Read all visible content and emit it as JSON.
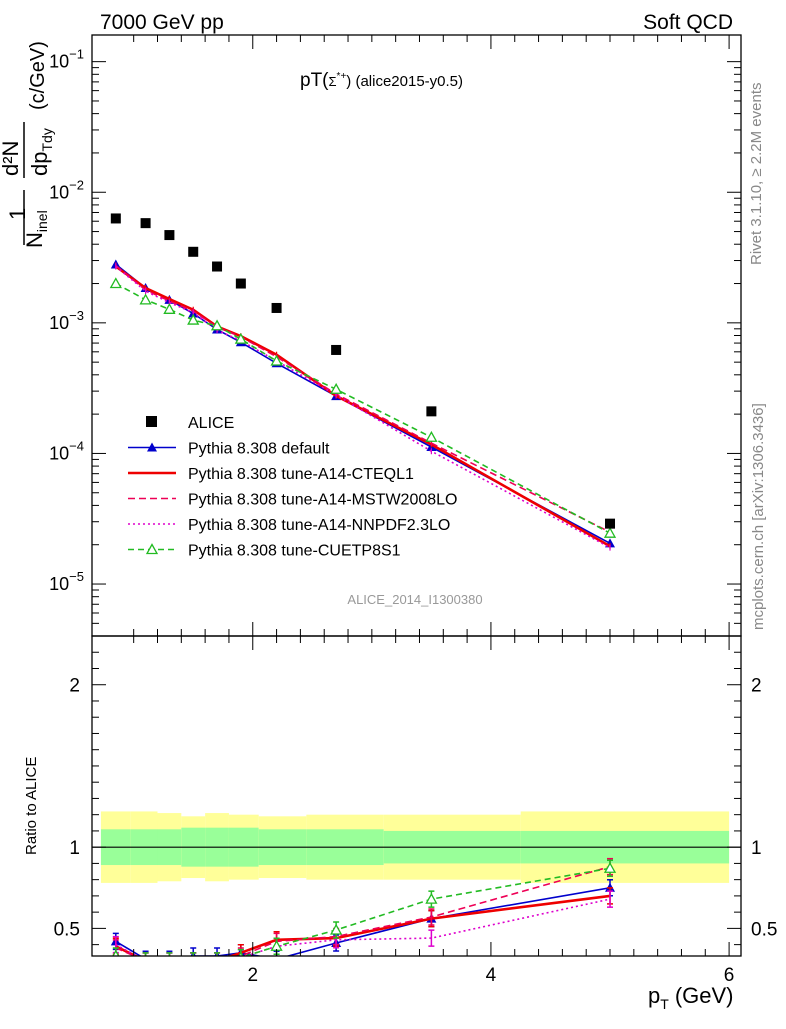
{
  "header": {
    "left": "7000 GeV pp",
    "right": "Soft QCD"
  },
  "side": {
    "rivet": "Rivet 3.1.10, ≥ 2.2M events",
    "mcplots": "mcplots.cern.ch [arXiv:1306.3436]"
  },
  "chart_data": {
    "type": "scatter",
    "title": "pT(Σ*⁺) (alice2015-y0.5)",
    "title_main": "pT(",
    "title_particle": "Σ",
    "title_sup": "*+",
    "title_tail": ") (alice2015-y0.5)",
    "watermark": "ALICE_2014_I1300380",
    "xlabel": "p",
    "xlabel_sub": "T",
    "xlabel_unit": "(GeV)",
    "ylabel_top": "1",
    "ylabel_bottom": "N",
    "ylabel_bottom_sub": "inel",
    "ylabel_d": "d²N",
    "ylabel_dp": "dp",
    "ylabel_dp_sub": "Tdy",
    "ylabel_unit": "(c/GeV)",
    "ratio_ylabel": "Ratio to ALICE",
    "xlim": [
      0.65,
      6.1
    ],
    "ylim": [
      4e-06,
      0.16
    ],
    "ylog": true,
    "ratio_ylim": [
      0.33,
      2.3
    ],
    "xticks": [
      2,
      4,
      6
    ],
    "xtick_labels": [
      "2",
      "4",
      "6"
    ],
    "yticks": [
      1e-05,
      0.0001,
      0.001,
      0.01,
      0.1
    ],
    "ytick_labels": [
      {
        "base": "10",
        "exp": "−5"
      },
      {
        "base": "10",
        "exp": "−4"
      },
      {
        "base": "10",
        "exp": "−3"
      },
      {
        "base": "10",
        "exp": "−2"
      },
      {
        "base": "10",
        "exp": "−1"
      }
    ],
    "ratio_yticks": [
      0.5,
      1,
      2
    ],
    "ratio_ytick_labels": [
      "0.5",
      "1",
      "2"
    ],
    "x": [
      0.85,
      1.1,
      1.3,
      1.5,
      1.7,
      1.9,
      2.2,
      2.7,
      3.5,
      5.0
    ],
    "data": {
      "name": "ALICE",
      "values": [
        0.0063,
        0.0058,
        0.0047,
        0.0035,
        0.0027,
        0.002,
        0.0013,
        0.00062,
        0.00021,
        2.9e-05
      ],
      "stat_frac": [
        0.11,
        0.11,
        0.11,
        0.12,
        0.12,
        0.12,
        0.11,
        0.11,
        0.1,
        0.1
      ],
      "tot_frac": [
        0.22,
        0.22,
        0.21,
        0.19,
        0.21,
        0.2,
        0.19,
        0.2,
        0.2,
        0.22
      ]
    },
    "series": [
      {
        "name": "Pythia 8.308 default",
        "color": "#0000cc",
        "values": [
          0.0028,
          0.00185,
          0.0015,
          0.00118,
          0.00089,
          0.00071,
          0.00049,
          0.000275,
          0.000112,
          2.05e-05
        ],
        "ratio": [
          0.42,
          0.31,
          0.31,
          0.33,
          0.33,
          0.35,
          0.31,
          0.41,
          0.56,
          0.75
        ],
        "marker": "triangle-filled",
        "dash": ""
      },
      {
        "name": "Pythia 8.308 tune-A14-CTEQL1",
        "color": "#ee0000",
        "values": [
          0.0027,
          0.00185,
          0.00152,
          0.00126,
          0.00094,
          0.00079,
          0.00057,
          0.000276,
          0.000117,
          1.95e-05
        ],
        "ratio": [
          0.39,
          0.3,
          0.3,
          0.3,
          0.3,
          0.35,
          0.43,
          0.44,
          0.56,
          0.7
        ],
        "marker": "none",
        "dash": ""
      },
      {
        "name": "Pythia 8.308 tune-A14-MSTW2008LO",
        "color": "#ee0055",
        "values": [
          0.00275,
          0.00178,
          0.00147,
          0.00123,
          0.00093,
          0.00078,
          0.00055,
          0.000285,
          0.00012,
          2.5e-05
        ],
        "ratio": [
          0.38,
          0.3,
          0.3,
          0.3,
          0.3,
          0.33,
          0.42,
          0.45,
          0.57,
          0.88
        ],
        "marker": "none",
        "dash": "7,4"
      },
      {
        "name": "Pythia 8.308 tune-A14-NNPDF2.3LO",
        "color": "#dd00cc",
        "values": [
          0.0027,
          0.00175,
          0.00143,
          0.0012,
          0.00088,
          0.00073,
          0.00051,
          0.00028,
          0.000104,
          1.9e-05
        ],
        "ratio": [
          0.4,
          0.3,
          0.3,
          0.3,
          0.3,
          0.32,
          0.39,
          0.43,
          0.44,
          0.68
        ],
        "marker": "none",
        "dash": "2,3"
      },
      {
        "name": "Pythia 8.308 tune-CUETP8S1",
        "color": "#22bb22",
        "values": [
          0.002,
          0.0015,
          0.00127,
          0.00105,
          0.00095,
          0.00075,
          0.00051,
          0.00031,
          0.000133,
          2.45e-05
        ],
        "ratio": [
          0.33,
          0.3,
          0.3,
          0.3,
          0.3,
          0.32,
          0.39,
          0.49,
          0.68,
          0.87
        ],
        "marker": "triangle-open",
        "dash": "6,4"
      }
    ]
  }
}
